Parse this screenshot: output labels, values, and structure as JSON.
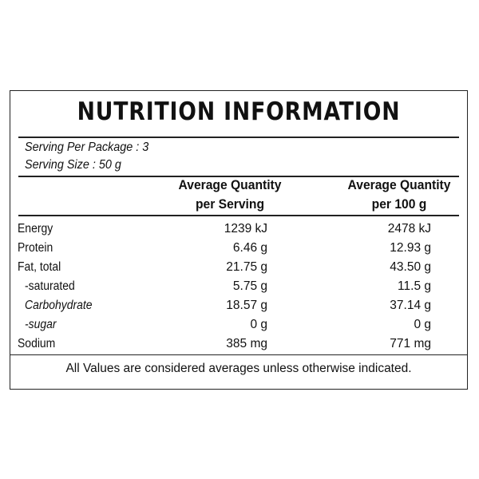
{
  "title": "NUTRITION INFORMATION",
  "serving": {
    "per_package": "Serving Per Package : 3",
    "size": "Serving Size : 50 g"
  },
  "columns": {
    "serving_line1": "Average Quantity",
    "serving_line2": "per Serving",
    "per100_line1": "Average Quantity",
    "per100_line2": "per 100 g"
  },
  "rows": [
    {
      "label": "Energy",
      "per_serving": "1239 kJ",
      "per_100g": "2478 kJ"
    },
    {
      "label": "Protein",
      "per_serving": "6.46 g",
      "per_100g": "12.93 g"
    },
    {
      "label": "Fat, total",
      "per_serving": "21.75 g",
      "per_100g": "43.50 g"
    },
    {
      "label": "-saturated",
      "per_serving": "5.75 g",
      "per_100g": "11.5 g"
    },
    {
      "label": "Carbohydrate",
      "per_serving": "18.57 g",
      "per_100g": "37.14 g"
    },
    {
      "label": "-sugar",
      "per_serving": "0 g",
      "per_100g": "0 g"
    },
    {
      "label": "Sodium",
      "per_serving": "385 mg",
      "per_100g": "771 mg"
    }
  ],
  "footer": "All Values are considered averages unless otherwise indicated."
}
